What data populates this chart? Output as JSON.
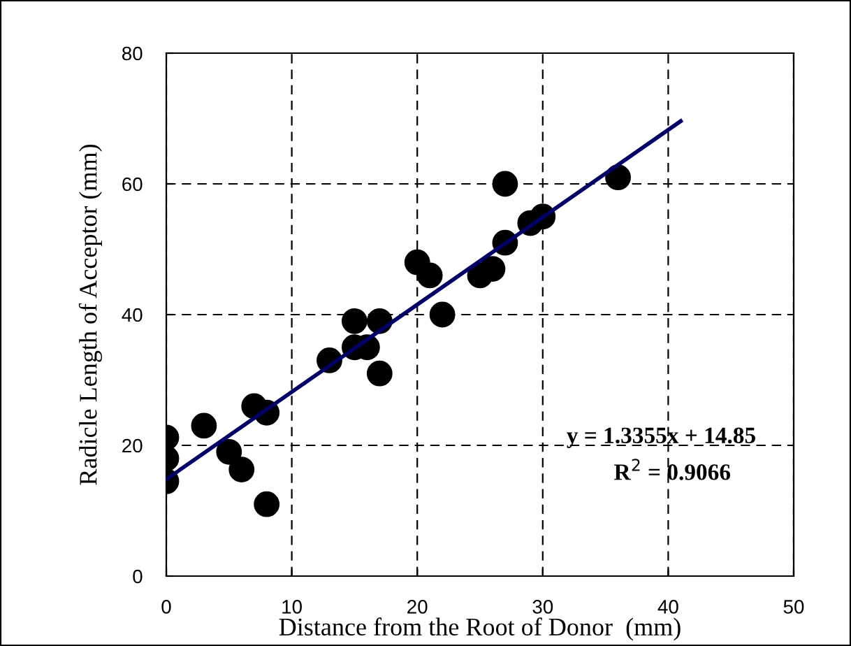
{
  "chart_data": {
    "type": "scatter",
    "xlabel": "Distance from the Root of Donor  (mm)",
    "ylabel": "Radicle Length of Acceptor (mm)",
    "xlim": [
      0,
      50
    ],
    "ylim": [
      0,
      80
    ],
    "xticks": [
      0,
      10,
      20,
      30,
      40,
      50
    ],
    "yticks": [
      0,
      20,
      40,
      60,
      80
    ],
    "grid": true,
    "annotations": [
      "y = 1.3355x + 14.85",
      "R$^{2}$ = 0.9066"
    ],
    "series": [
      {
        "color": "#000000",
        "marker": "circle",
        "x": [
          0,
          0,
          0,
          3,
          5,
          6,
          7,
          8,
          8,
          13,
          15,
          15,
          16,
          17,
          17,
          20,
          21,
          22,
          25,
          26,
          27,
          27,
          29,
          30,
          36
        ],
        "values": [
          21.2,
          18,
          14.5,
          23,
          19,
          16.3,
          26,
          25,
          11,
          33,
          39,
          35,
          35,
          31,
          39,
          48,
          46,
          40,
          46,
          47,
          51,
          60,
          54,
          55,
          61
        ]
      },
      {
        "type": "line",
        "color": "#000066",
        "x": [
          0,
          41
        ],
        "values": [
          14.8,
          69.6
        ]
      }
    ]
  }
}
